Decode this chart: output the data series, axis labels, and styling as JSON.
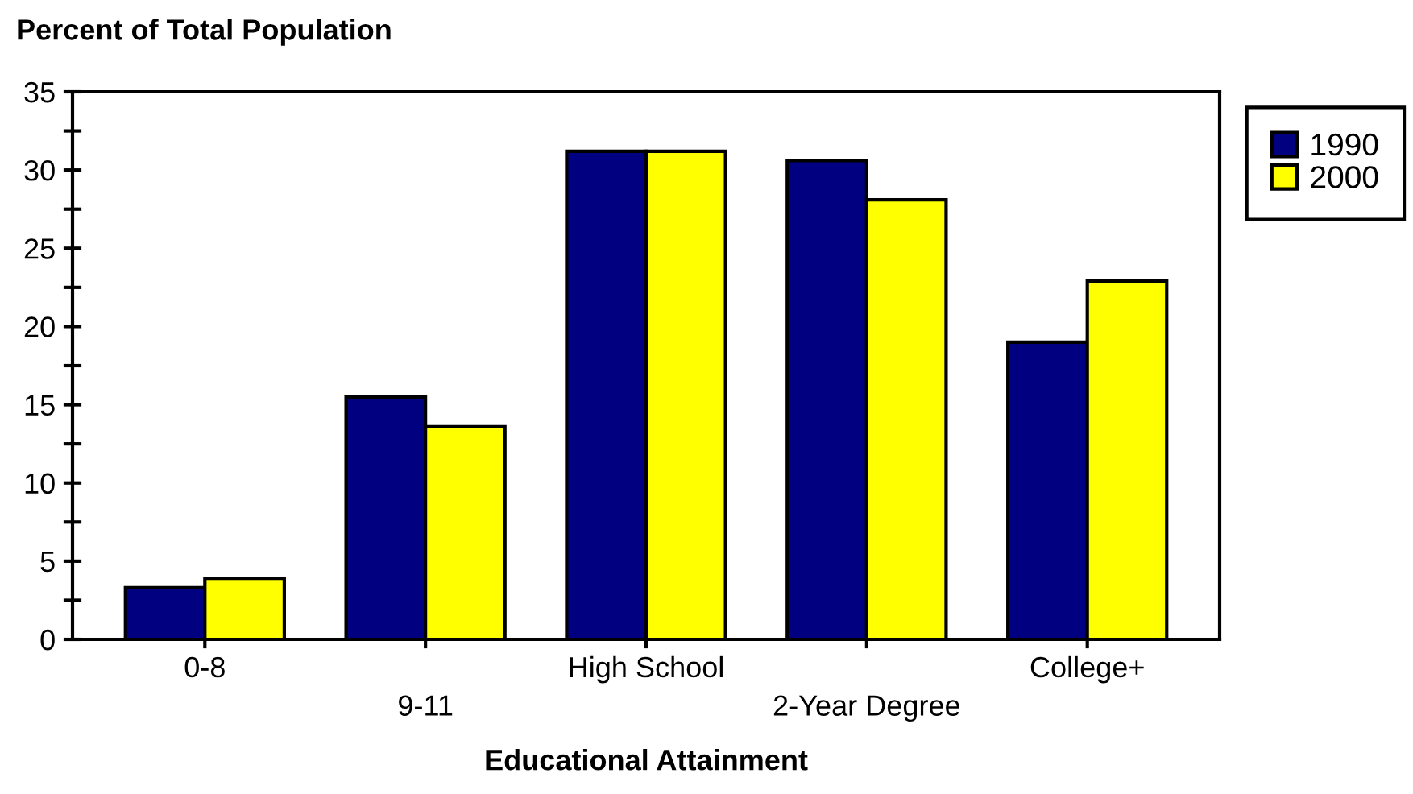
{
  "chart_data": {
    "type": "bar",
    "ylabel": "Percent of Total Population",
    "xlabel": "Educational Attainment",
    "categories": [
      "0-8",
      "9-11",
      "High School",
      "2-Year Degree",
      "College+"
    ],
    "series": [
      {
        "name": "1990",
        "color": "#000080",
        "values": [
          3.3,
          15.5,
          31.2,
          30.6,
          19.0
        ]
      },
      {
        "name": "2000",
        "color": "#ffff00",
        "values": [
          3.9,
          13.6,
          31.2,
          28.1,
          22.9
        ]
      }
    ],
    "ylim": [
      0,
      35
    ],
    "yticks": [
      0,
      {
        "value": 2.5,
        "label": null
      },
      5,
      {
        "value": 7.5,
        "label": null
      },
      10,
      {
        "value": 12.5,
        "label": null
      },
      15,
      {
        "value": 17.5,
        "label": null
      },
      20,
      {
        "value": 22.5,
        "label": null
      },
      25,
      {
        "value": 27.5,
        "label": null
      },
      30,
      {
        "value": 32.5,
        "label": null
      },
      35
    ],
    "grid": false,
    "legend": "top right"
  }
}
